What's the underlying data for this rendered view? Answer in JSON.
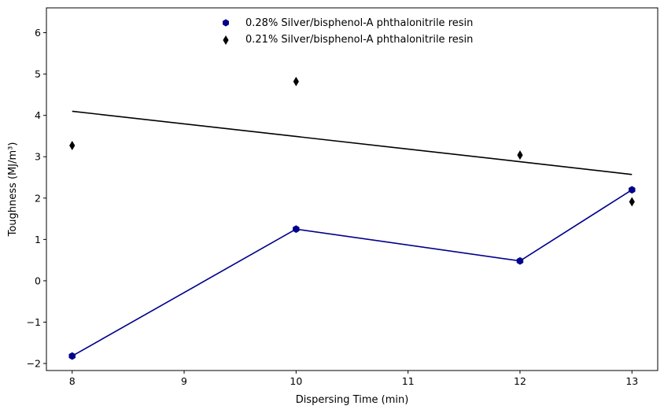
{
  "chart_data": {
    "type": "line",
    "title": "",
    "xlabel": "Dispersing Time (min)",
    "ylabel": "Toughness (MJ/m³)",
    "xlim": [
      7.77,
      13.23
    ],
    "ylim": [
      -2.17,
      6.6
    ],
    "xticks": [
      8,
      9,
      10,
      11,
      12,
      13
    ],
    "yticks": [
      -2,
      -1,
      0,
      1,
      2,
      3,
      4,
      5,
      6
    ],
    "xtick_labels": [
      "8",
      "9",
      "10",
      "11",
      "12",
      "13"
    ],
    "ytick_labels": [
      "−2",
      "−1",
      "0",
      "1",
      "2",
      "3",
      "4",
      "5",
      "6"
    ],
    "grid": false,
    "legend_position": "top-center",
    "series": [
      {
        "name": "0.28% Silver/bisphenol-A phthalonitrile resin",
        "marker": "hexagon",
        "color": "#00008b",
        "x": [
          8,
          10,
          12,
          13
        ],
        "y": [
          -1.82,
          1.25,
          0.48,
          2.2
        ],
        "line": "connected"
      },
      {
        "name": "0.21% Silver/bisphenol-A phthalonitrile resin",
        "marker": "thin-diamond",
        "color": "#000000",
        "x": [
          8,
          10,
          12,
          13
        ],
        "y": [
          3.27,
          4.82,
          3.04,
          1.91
        ],
        "line": "trend",
        "trend_y": [
          4.1,
          3.49,
          2.88,
          2.57
        ]
      }
    ]
  }
}
